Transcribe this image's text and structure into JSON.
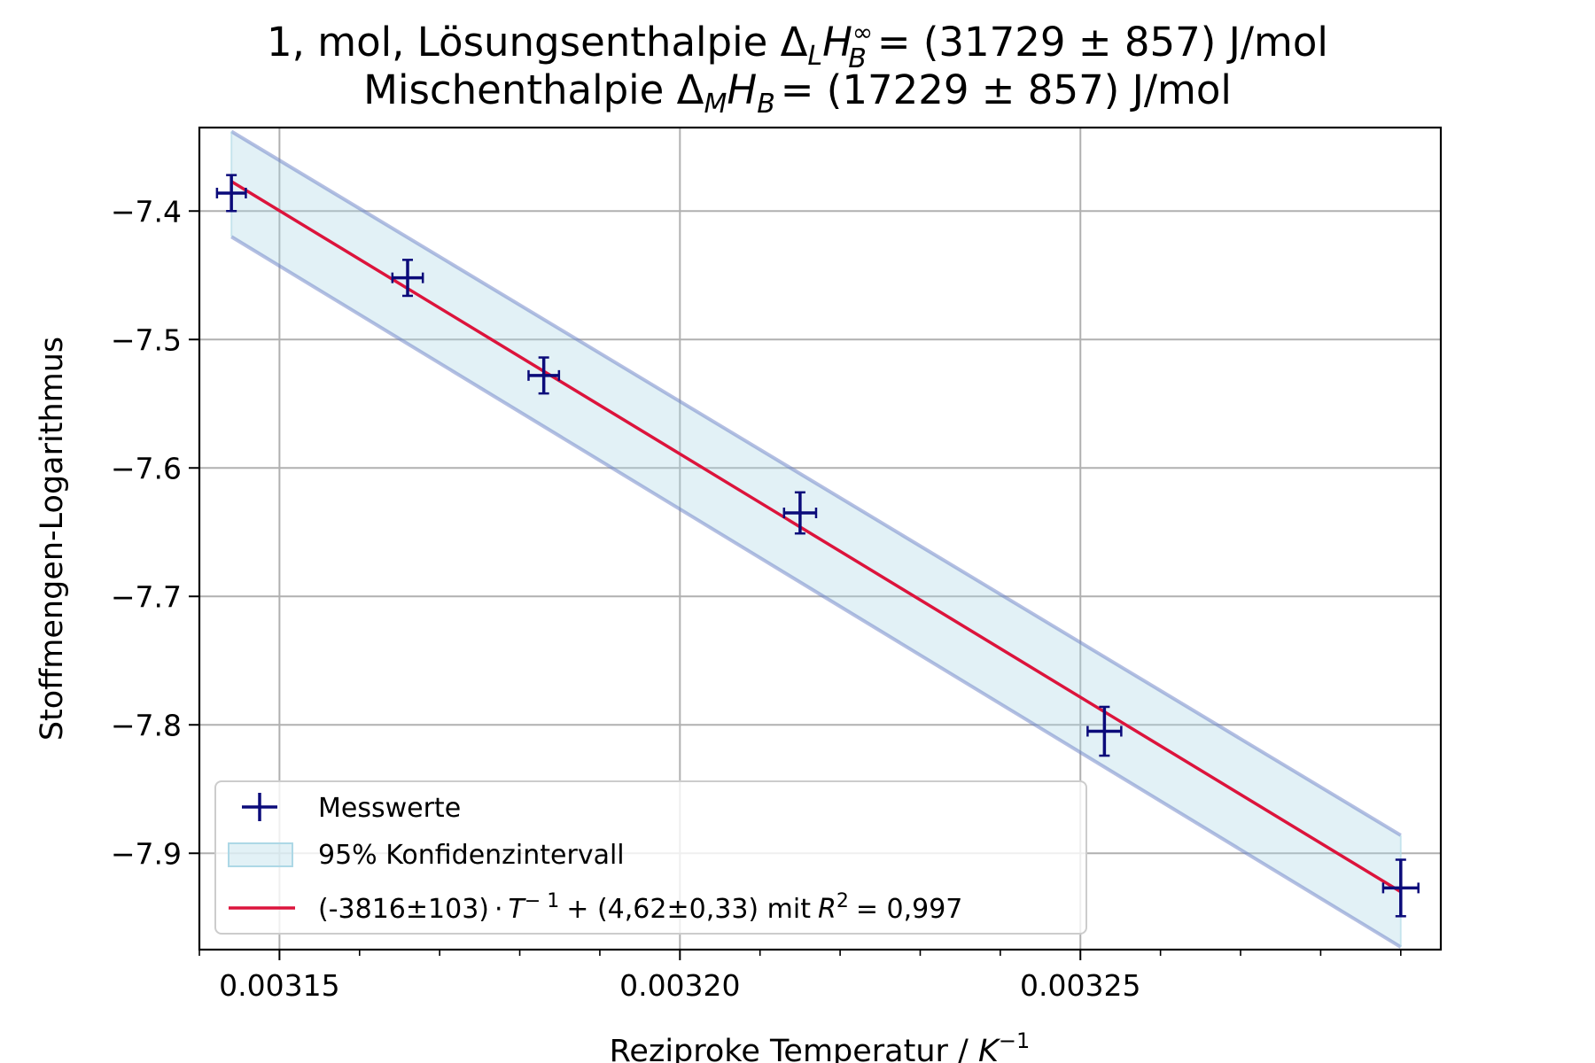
{
  "chart_data": {
    "type": "scatter",
    "title_line1": "1, mol, Lösungsenthalpie Δ",
    "title_line2": "Mischenthalpie Δ",
    "title": {
      "l1_sub_L": "L",
      "l1_H": "H",
      "l1_sup": "∞",
      "l1_sub_B": "B",
      "l1_value": "= (31729 ± 857) J/mol",
      "l2_sub_M": "M",
      "l2_H": "H",
      "l2_sub_B": "B",
      "l2_value": "=  (17229 ± 857) J/mol"
    },
    "xlabel": {
      "text": "Reziproke Temperatur / ",
      "unit": "K",
      "sup": "−1"
    },
    "ylabel": "Stoffmengen-Logarithmus",
    "xlim": [
      0.00314,
      0.003295
    ],
    "ylim": [
      -7.975,
      -7.335
    ],
    "x_ticks": [
      {
        "value": 0.00315,
        "label": "0.00315"
      },
      {
        "value": 0.0032,
        "label": "0.00320"
      },
      {
        "value": 0.00325,
        "label": "0.00325"
      }
    ],
    "y_ticks": [
      {
        "value": -7.4,
        "label": "−7.4"
      },
      {
        "value": -7.5,
        "label": "−7.5"
      },
      {
        "value": -7.6,
        "label": "−7.6"
      },
      {
        "value": -7.7,
        "label": "−7.7"
      },
      {
        "value": -7.8,
        "label": "−7.8"
      },
      {
        "value": -7.9,
        "label": "−7.9"
      }
    ],
    "minor_x_step": 1e-05,
    "grid": true,
    "legend_position": "lower-left",
    "series": [
      {
        "name": "Messwerte",
        "kind": "errorbar",
        "color": "#0b0b7a",
        "points": [
          {
            "x": 0.003144,
            "y": -7.386,
            "xerr": 1.8e-06,
            "yerr": 0.014
          },
          {
            "x": 0.003166,
            "y": -7.452,
            "xerr": 1.9e-06,
            "yerr": 0.014
          },
          {
            "x": 0.003183,
            "y": -7.528,
            "xerr": 1.9e-06,
            "yerr": 0.014
          },
          {
            "x": 0.003215,
            "y": -7.635,
            "xerr": 2e-06,
            "yerr": 0.016
          },
          {
            "x": 0.003253,
            "y": -7.805,
            "xerr": 2.1e-06,
            "yerr": 0.019
          },
          {
            "x": 0.00329,
            "y": -7.927,
            "xerr": 2.2e-06,
            "yerr": 0.022
          }
        ]
      },
      {
        "name": "95% Konfidenzintervall",
        "kind": "band",
        "color": "#add8e6",
        "edge_color": "#6a7fc6",
        "x": [
          0.003144,
          0.00329
        ],
        "lower": [
          -7.42,
          -7.973
        ],
        "upper": [
          -7.338,
          -7.886
        ]
      },
      {
        "name": "fit",
        "kind": "line",
        "color": "#dc143c",
        "x": [
          0.003144,
          0.00329
        ],
        "y": [
          -7.377,
          -7.93
        ]
      }
    ],
    "legend": {
      "messwerte": "Messwerte",
      "konfidenz": "95% Konfidenzintervall",
      "fit_a": "(-3816±103)",
      "fit_b": "·",
      "fit_c": "T",
      "fit_c_sup": "− 1",
      "fit_d": "+ (4,62±0,33) mit",
      "fit_r": "R",
      "fit_r_sup": "2",
      "fit_e": "= 0,997"
    }
  }
}
